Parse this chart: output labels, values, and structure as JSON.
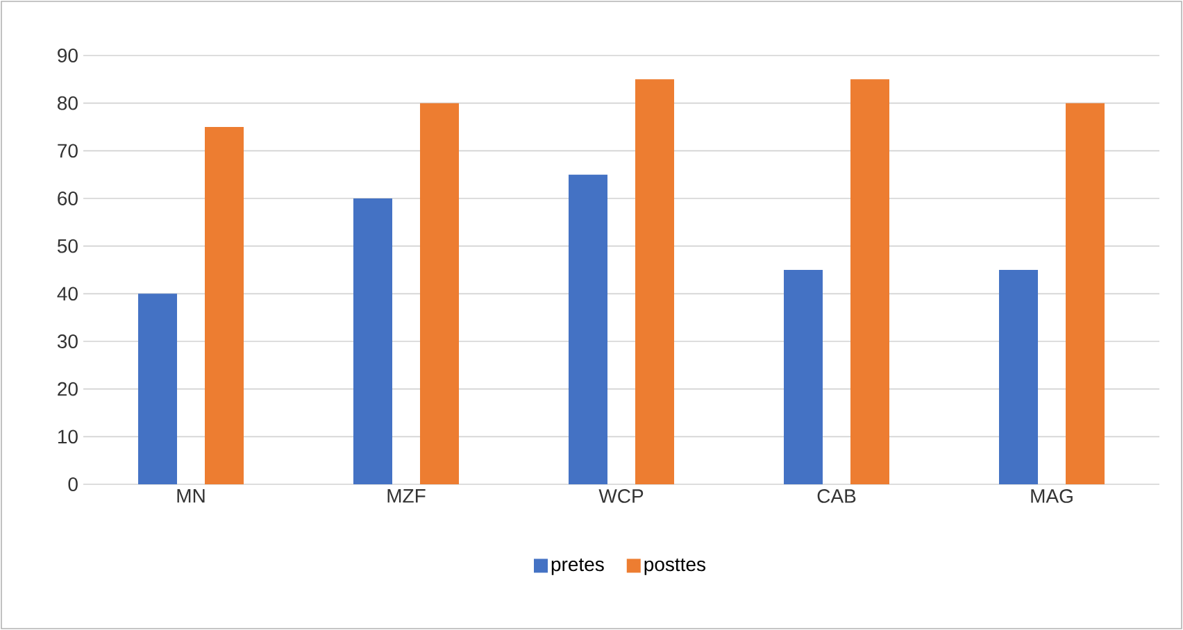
{
  "chart_data": {
    "type": "bar",
    "categories": [
      "MN",
      "MZF",
      "WCP",
      "CAB",
      "MAG"
    ],
    "series": [
      {
        "name": "pretes",
        "color": "#4472c4",
        "values": [
          40,
          60,
          65,
          45,
          45
        ]
      },
      {
        "name": "posttes",
        "color": "#ed7d31",
        "values": [
          75,
          80,
          85,
          85,
          80
        ]
      }
    ],
    "ylim": [
      0,
      90
    ],
    "yticks": [
      0,
      10,
      20,
      30,
      40,
      50,
      60,
      70,
      80,
      90
    ],
    "grid": "y",
    "legend": "bottom"
  }
}
